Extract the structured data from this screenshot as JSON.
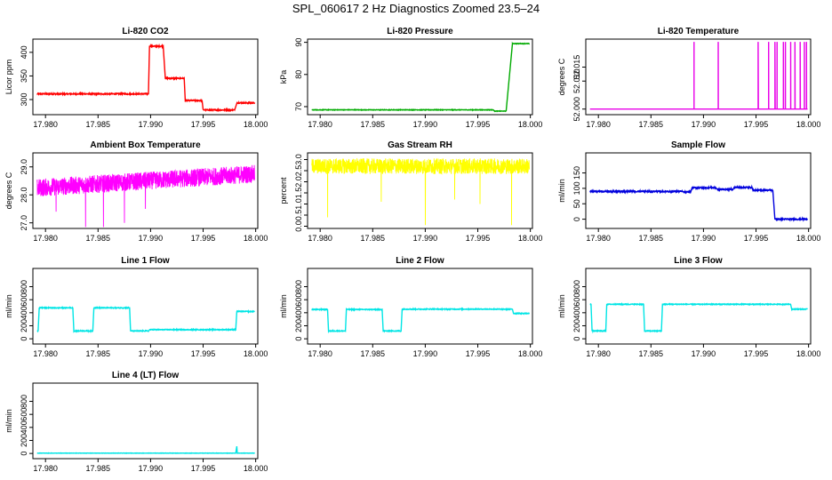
{
  "figure": {
    "title": "SPL_060617  2 Hz Diagnostics Zoomed 23.5–24"
  },
  "chart_data": [
    {
      "type": "line",
      "title": "Li-820 CO2",
      "ylabel": "Licor ppm",
      "xlim": [
        17.9788,
        18.0002
      ],
      "ylim": [
        268,
        428
      ],
      "yticks": [
        300,
        350,
        400
      ],
      "ytick_decimals": 0,
      "color": "#ff0000",
      "noise": 1.2,
      "segments": [
        [
          17.9792,
          17.9898,
          312
        ],
        [
          17.9899,
          17.9912,
          413
        ],
        [
          17.9914,
          17.9932,
          345
        ],
        [
          17.9933,
          17.9949,
          298
        ],
        [
          17.995,
          17.998,
          278
        ],
        [
          17.9982,
          17.9999,
          293
        ]
      ]
    },
    {
      "type": "line",
      "title": "Li-820 Pressure",
      "ylabel": "kPa",
      "xlim": [
        17.9788,
        18.0002
      ],
      "ylim": [
        67.5,
        91
      ],
      "yticks": [
        70,
        80,
        90
      ],
      "ytick_decimals": 0,
      "color": "#00aa00",
      "noise": 0.08,
      "segments": [
        [
          17.9792,
          17.9965,
          69.0
        ],
        [
          17.9966,
          17.9977,
          68.6
        ],
        [
          17.9983,
          17.9999,
          89.6
        ]
      ],
      "ramp": [
        17.9977,
        68.6,
        17.9983,
        89.6
      ]
    },
    {
      "type": "spike",
      "title": "Li-820 Temperature",
      "ylabel": "degrees C",
      "xlim": [
        17.9788,
        18.0002
      ],
      "ylim": [
        51.998,
        52.025
      ],
      "yticks": [
        52.0,
        52.01,
        52.015
      ],
      "ytick_decimals": 3,
      "color": "#e800e8",
      "base": 52.0,
      "peak": 52.024,
      "spikes": [
        17.9891,
        17.9914,
        17.9952,
        17.9962,
        17.9968,
        17.997,
        17.9976,
        17.9978,
        17.9983,
        17.9987,
        17.9992,
        17.9996,
        17.9998
      ]
    },
    {
      "type": "noise",
      "title": "Ambient Box Temperature",
      "ylabel": "degrees C",
      "xlim": [
        17.9788,
        18.0002
      ],
      "ylim": [
        26.8,
        29.5
      ],
      "yticks": [
        27.0,
        28.0,
        29.0
      ],
      "ytick_decimals": 1,
      "color": "#ff00ff",
      "start": 28.25,
      "end": 28.75,
      "amplitude": 0.32,
      "dips": [
        [
          17.9838,
          26.85
        ],
        [
          17.9855,
          26.85
        ],
        [
          17.9875,
          27.0
        ],
        [
          17.981,
          27.4
        ],
        [
          17.9895,
          27.5
        ]
      ]
    },
    {
      "type": "noise",
      "title": "Gas Stream RH",
      "ylabel": "percent",
      "xlim": [
        17.9788,
        18.0002
      ],
      "ylim": [
        -0.1,
        3.3
      ],
      "yticks": [
        0.0,
        0.5,
        1.0,
        1.5,
        2.0,
        2.5,
        3.0
      ],
      "ytick_decimals": 1,
      "color": "#ffff00",
      "start": 2.7,
      "end": 2.7,
      "amplitude": 0.35,
      "dips": [
        [
          17.9807,
          0.4
        ],
        [
          17.99,
          0.05
        ],
        [
          17.9982,
          0.05
        ],
        [
          17.9858,
          1.1
        ],
        [
          17.9928,
          1.2
        ],
        [
          17.9952,
          1.0
        ]
      ]
    },
    {
      "type": "line",
      "title": "Sample Flow",
      "ylabel": "ml/min",
      "xlim": [
        17.9788,
        18.0002
      ],
      "ylim": [
        -30,
        215
      ],
      "yticks": [
        0,
        50,
        100,
        150
      ],
      "ytick_decimals": 0,
      "color": "#0000dd",
      "noise": 2.2,
      "segments": [
        [
          17.9792,
          17.988,
          90
        ],
        [
          17.9881,
          17.9888,
          88
        ],
        [
          17.9889,
          17.9912,
          102
        ],
        [
          17.9913,
          17.9928,
          97
        ],
        [
          17.9929,
          17.9946,
          103
        ],
        [
          17.9947,
          17.9966,
          94
        ],
        [
          17.9968,
          17.9999,
          0
        ]
      ]
    },
    {
      "type": "line",
      "title": "Line 1 Flow",
      "ylabel": "ml/min",
      "xlim": [
        17.9788,
        18.0002
      ],
      "ylim": [
        -80,
        1080
      ],
      "yticks": [
        0,
        200,
        400,
        600,
        800
      ],
      "ytick_decimals": 0,
      "color": "#00e5e5",
      "noise": 6,
      "segments": [
        [
          17.9792,
          17.9793,
          120
        ],
        [
          17.9794,
          17.9826,
          475
        ],
        [
          17.9827,
          17.9845,
          120
        ],
        [
          17.9846,
          17.988,
          475
        ],
        [
          17.9881,
          17.9898,
          120
        ],
        [
          17.9899,
          17.9981,
          140
        ],
        [
          17.9982,
          17.9999,
          420
        ]
      ]
    },
    {
      "type": "line",
      "title": "Line 2 Flow",
      "ylabel": "ml/min",
      "xlim": [
        17.9788,
        18.0002
      ],
      "ylim": [
        -80,
        1080
      ],
      "yticks": [
        0,
        200,
        400,
        600,
        800
      ],
      "ytick_decimals": 0,
      "color": "#00e5e5",
      "noise": 6,
      "segments": [
        [
          17.9792,
          17.9807,
          450
        ],
        [
          17.9808,
          17.9824,
          120
        ],
        [
          17.9825,
          17.9859,
          450
        ],
        [
          17.986,
          17.9877,
          120
        ],
        [
          17.9878,
          17.9983,
          455
        ],
        [
          17.9984,
          17.9999,
          390
        ]
      ]
    },
    {
      "type": "line",
      "title": "Line 3 Flow",
      "ylabel": "ml/min",
      "xlim": [
        17.9788,
        18.0002
      ],
      "ylim": [
        -80,
        1080
      ],
      "yticks": [
        0,
        200,
        400,
        600,
        800
      ],
      "ytick_decimals": 0,
      "color": "#00e5e5",
      "noise": 6,
      "segments": [
        [
          17.9792,
          17.9793,
          530
        ],
        [
          17.9794,
          17.9807,
          120
        ],
        [
          17.9808,
          17.9843,
          530
        ],
        [
          17.9844,
          17.986,
          120
        ],
        [
          17.9861,
          17.9983,
          530
        ],
        [
          17.9984,
          17.9999,
          455
        ]
      ]
    },
    {
      "type": "line",
      "title": "Line 4 (LT) Flow",
      "ylabel": "ml/min",
      "xlim": [
        17.9788,
        18.0002
      ],
      "ylim": [
        -80,
        1080
      ],
      "yticks": [
        0,
        200,
        400,
        600,
        800
      ],
      "ytick_decimals": 0,
      "color": "#00e5e5",
      "noise": 2,
      "segments": [
        [
          17.9792,
          17.9981,
          5
        ],
        [
          17.9982,
          17.9999,
          5
        ]
      ],
      "blip": [
        17.9982,
        110
      ]
    }
  ],
  "xticks": [
    17.98,
    17.985,
    17.99,
    17.995,
    18.0
  ]
}
